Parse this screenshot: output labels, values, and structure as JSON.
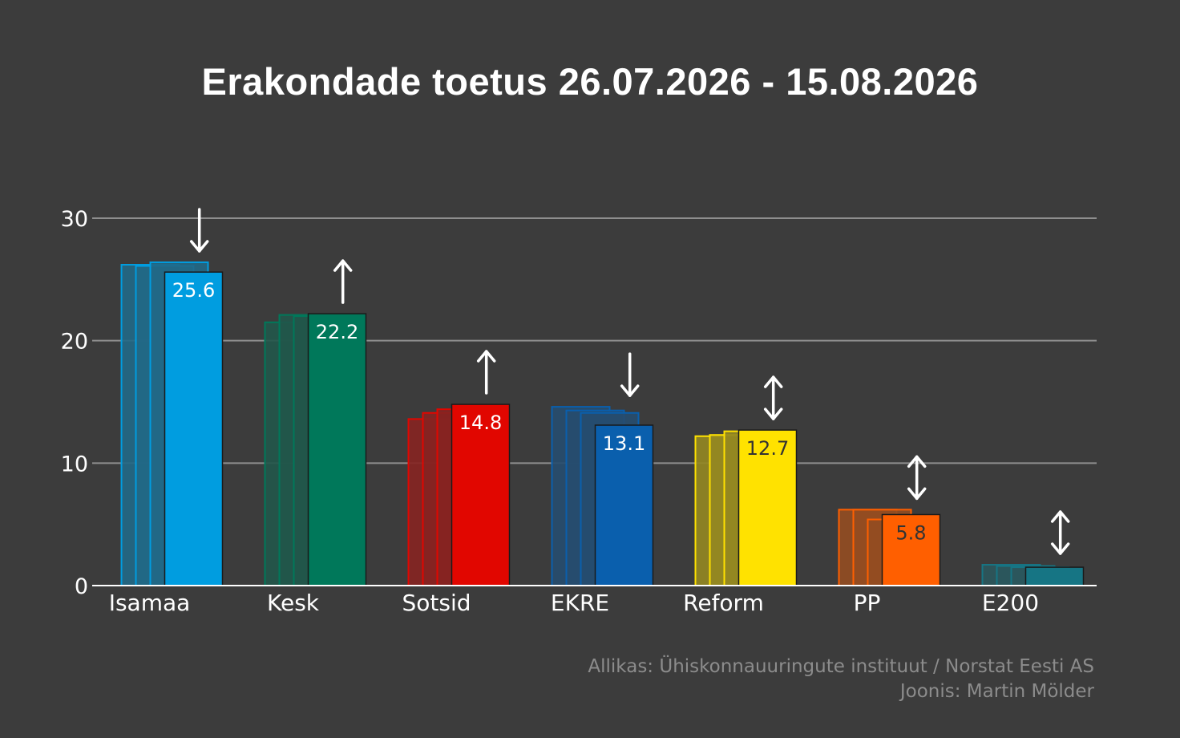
{
  "chart_data": {
    "type": "bar",
    "title": "Erakondade toetus 26.07.2026 - 15.08.2026",
    "xlabel": "",
    "ylabel": "",
    "ylim": [
      0,
      30
    ],
    "yticks": [
      0,
      10,
      20,
      30
    ],
    "grid": true,
    "categories": [
      "Isamaa",
      "Kesk",
      "Sotsid",
      "EKRE",
      "Reform",
      "PP",
      "E200"
    ],
    "current_values": [
      25.6,
      22.2,
      14.8,
      13.1,
      12.7,
      5.8,
      1.5
    ],
    "current_value_labels": [
      "25.6",
      "22.2",
      "14.8",
      "13.1",
      "12.7",
      "5.8",
      ""
    ],
    "previous_values": [
      [
        26.2,
        26.1,
        26.4
      ],
      [
        21.5,
        22.1,
        22.0
      ],
      [
        13.6,
        14.1,
        14.4
      ],
      [
        14.6,
        14.3,
        14.1
      ],
      [
        12.2,
        12.3,
        12.6
      ],
      [
        6.2,
        6.2,
        5.4
      ],
      [
        1.7,
        1.6,
        1.5
      ]
    ],
    "trend_arrows": [
      "down",
      "up",
      "up",
      "down",
      "both",
      "both",
      "both"
    ],
    "colors": [
      "#009de0",
      "#00785a",
      "#e10600",
      "#0a5fad",
      "#ffe200",
      "#ff5f00",
      "#167584"
    ],
    "label_colors": [
      "#ffffff",
      "#ffffff",
      "#ffffff",
      "#ffffff",
      "#333333",
      "#333333",
      "#ffffff"
    ]
  },
  "source": {
    "line1": "Allikas: Ühiskonnauuringute instituut / Norstat Eesti AS",
    "line2": "Joonis: Martin Mölder"
  }
}
